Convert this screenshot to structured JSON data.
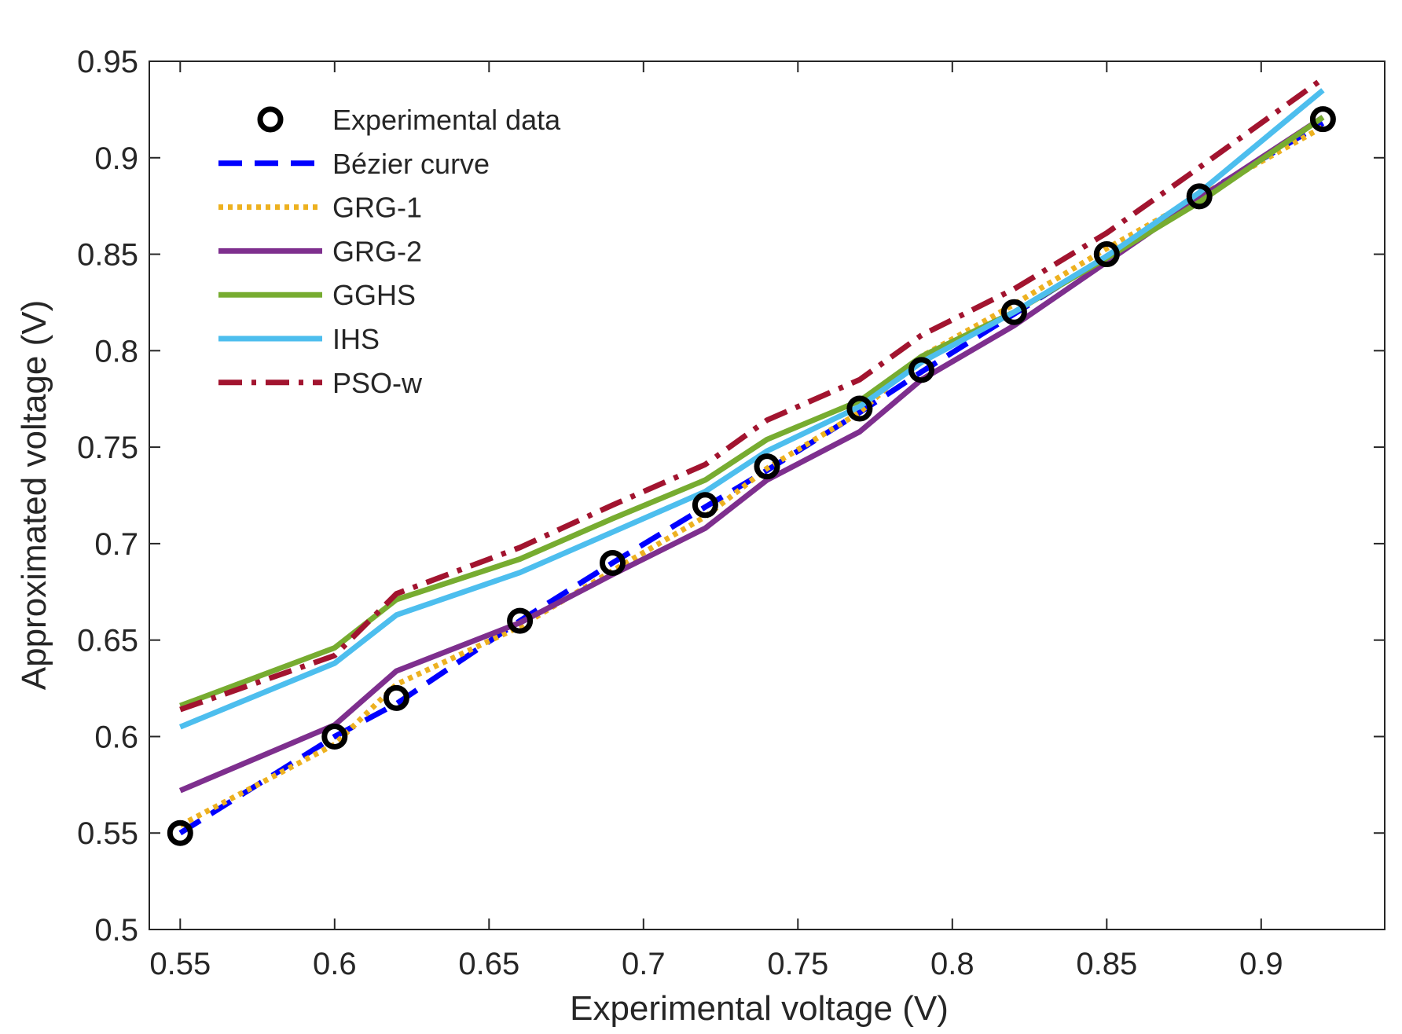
{
  "chart_data": {
    "type": "line",
    "title": "",
    "xlabel": "Experimental voltage (V)",
    "ylabel": "Approximated voltage (V)",
    "xlim": [
      0.54,
      0.94
    ],
    "ylim": [
      0.5,
      0.95
    ],
    "xticks": [
      0.55,
      0.6,
      0.65,
      0.7,
      0.75,
      0.8,
      0.85,
      0.9
    ],
    "xtick_labels": [
      "0.55",
      "0.6",
      "0.65",
      "0.7",
      "0.75",
      "0.8",
      "0.85",
      "0.9"
    ],
    "yticks": [
      0.5,
      0.55,
      0.6,
      0.65,
      0.7,
      0.75,
      0.8,
      0.85,
      0.9,
      0.95
    ],
    "ytick_labels": [
      "0.5",
      "0.55",
      "0.6",
      "0.65",
      "0.7",
      "0.75",
      "0.8",
      "0.85",
      "0.9",
      "0.95"
    ],
    "legend_position": "top-left",
    "x": [
      0.55,
      0.6,
      0.62,
      0.66,
      0.69,
      0.72,
      0.74,
      0.77,
      0.79,
      0.82,
      0.85,
      0.88,
      0.92
    ],
    "series": [
      {
        "name": "Experimental data",
        "style": "markers",
        "color": "#000000",
        "values": [
          0.55,
          0.6,
          0.62,
          0.66,
          0.69,
          0.72,
          0.74,
          0.77,
          0.79,
          0.82,
          0.85,
          0.88,
          0.92
        ]
      },
      {
        "name": "Bézier curve",
        "style": "dashed",
        "color": "#0000ff",
        "values": [
          0.55,
          0.6,
          0.617,
          0.66,
          0.69,
          0.719,
          0.738,
          0.768,
          0.789,
          0.819,
          0.849,
          0.88,
          0.918
        ]
      },
      {
        "name": "GRG-1",
        "style": "dotted",
        "color": "#edb120",
        "values": [
          0.554,
          0.596,
          0.627,
          0.657,
          0.686,
          0.714,
          0.739,
          0.768,
          0.797,
          0.824,
          0.853,
          0.88,
          0.916
        ]
      },
      {
        "name": "GRG-2",
        "style": "solid",
        "color": "#7e2f8e",
        "values": [
          0.572,
          0.606,
          0.634,
          0.659,
          0.684,
          0.708,
          0.733,
          0.758,
          0.785,
          0.813,
          0.846,
          0.879,
          0.921
        ]
      },
      {
        "name": "GGHS",
        "style": "solid",
        "color": "#77ac30",
        "values": [
          0.616,
          0.646,
          0.671,
          0.692,
          0.713,
          0.733,
          0.754,
          0.774,
          0.797,
          0.82,
          0.848,
          0.877,
          0.921
        ]
      },
      {
        "name": "IHS",
        "style": "solid",
        "color": "#4dbeee",
        "values": [
          0.605,
          0.638,
          0.663,
          0.685,
          0.706,
          0.727,
          0.748,
          0.771,
          0.794,
          0.82,
          0.849,
          0.882,
          0.935
        ]
      },
      {
        "name": "PSO-w",
        "style": "dashdot",
        "color": "#a2142f",
        "values": [
          0.614,
          0.642,
          0.674,
          0.698,
          0.72,
          0.741,
          0.764,
          0.785,
          0.808,
          0.832,
          0.861,
          0.895,
          0.941
        ]
      }
    ]
  }
}
